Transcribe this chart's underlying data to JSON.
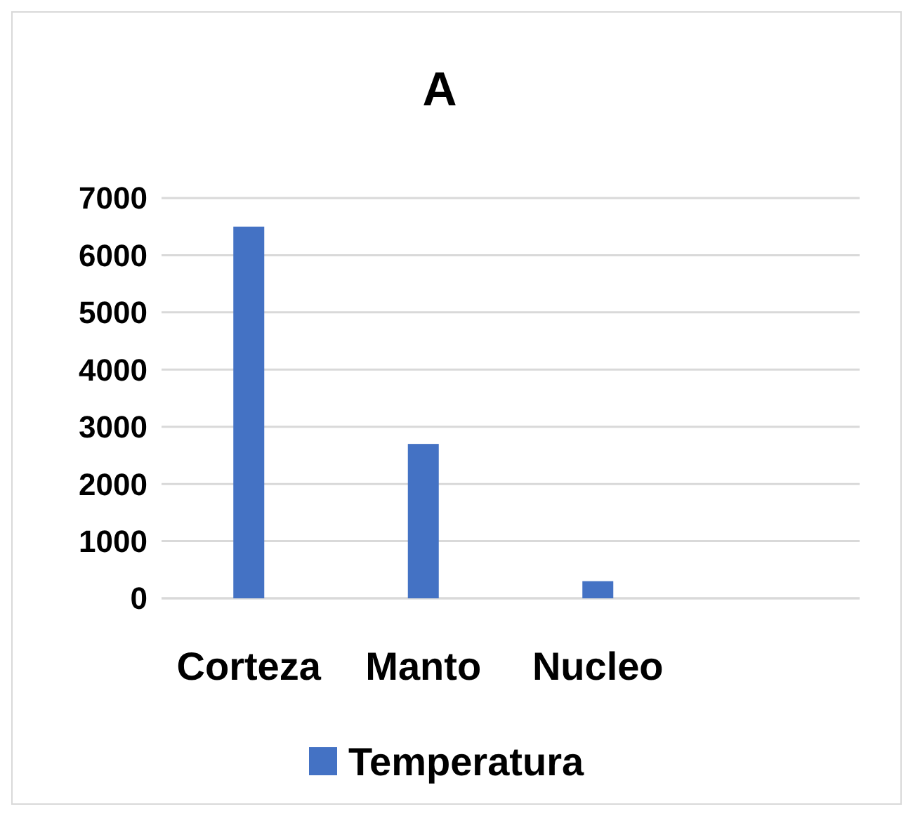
{
  "chart_data": {
    "type": "bar",
    "title": "A",
    "categories": [
      "Corteza",
      "Manto",
      "Nucleo",
      null
    ],
    "series": [
      {
        "name": "Temperatura",
        "color": "#4472c4",
        "values": [
          6500,
          2700,
          300,
          null
        ]
      }
    ],
    "ylim": [
      0,
      7000
    ],
    "yticks": [
      0,
      1000,
      2000,
      3000,
      4000,
      5000,
      6000,
      7000
    ],
    "grid": "y",
    "legend": "bottom"
  }
}
